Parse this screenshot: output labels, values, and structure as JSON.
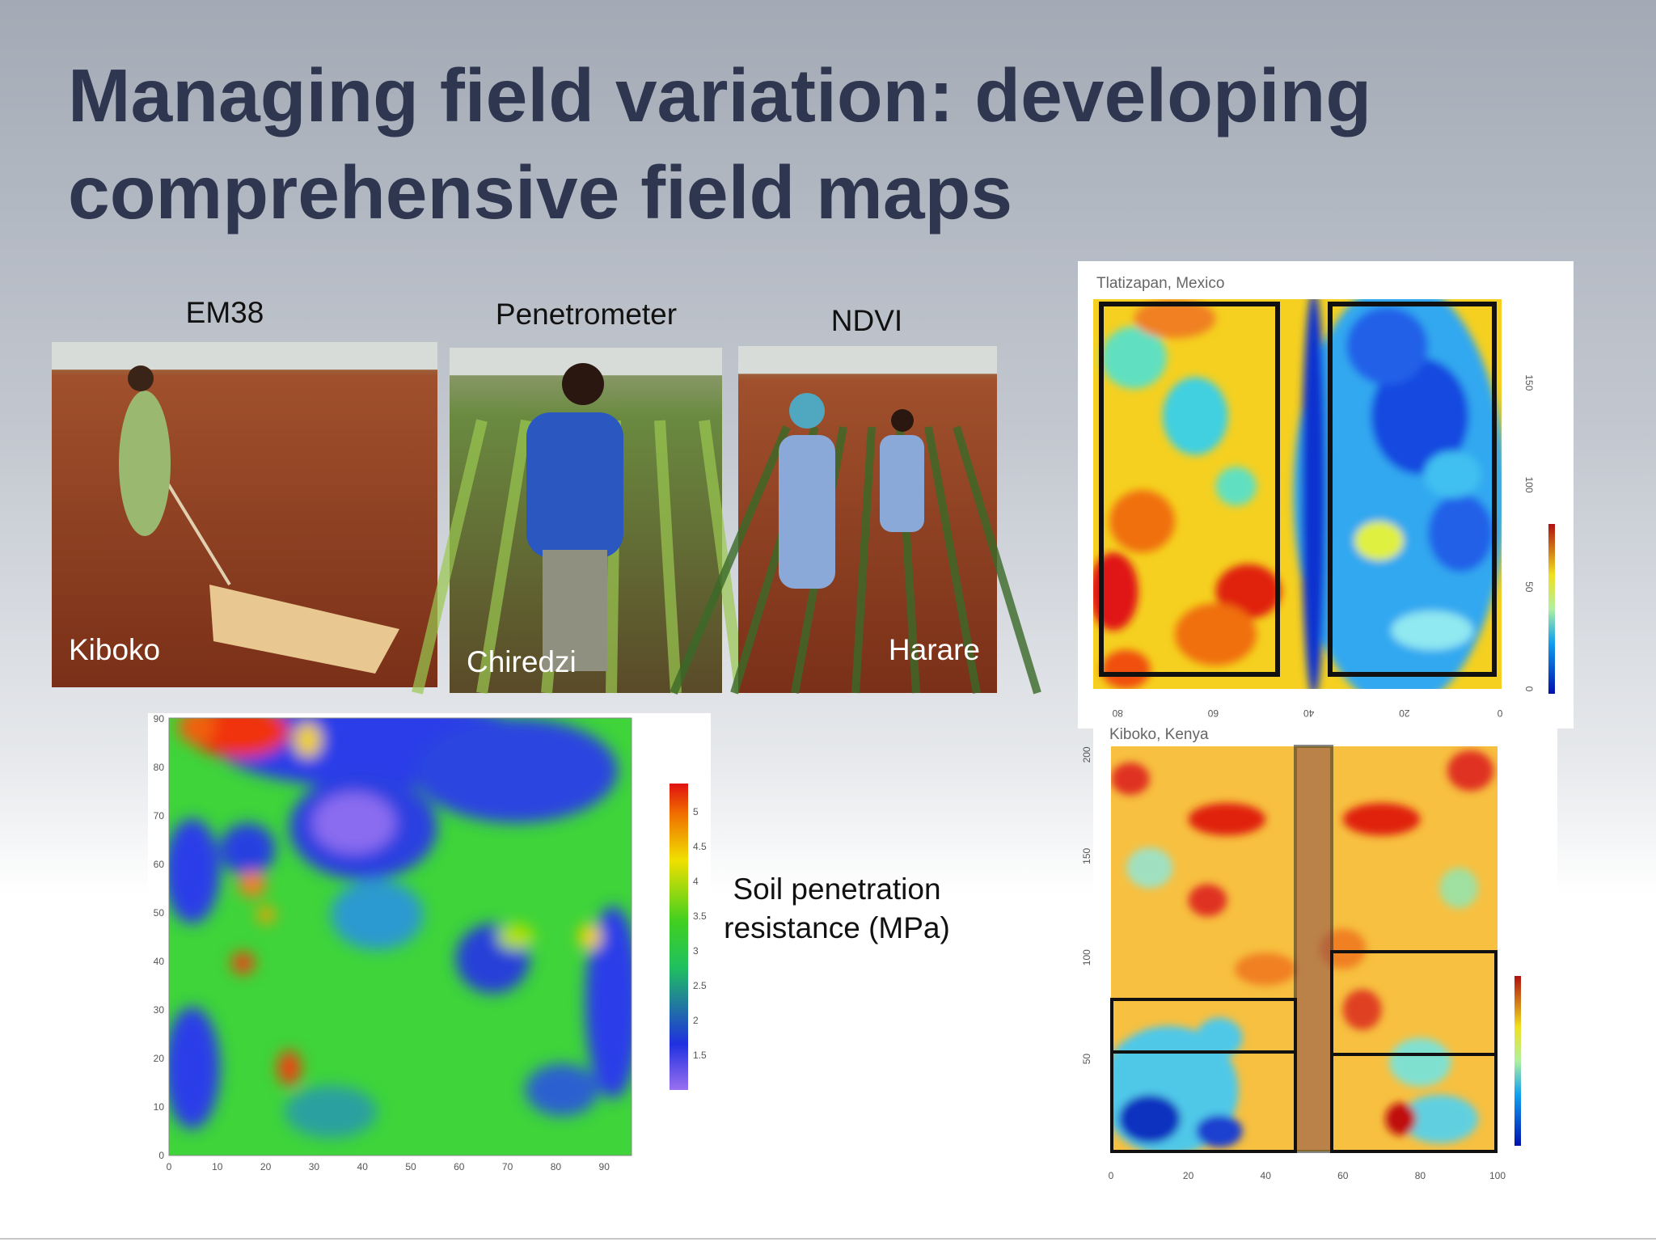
{
  "title": "Managing field variation: developing comprehensive field maps",
  "photos": [
    {
      "label": "EM38",
      "location": "Kiboko"
    },
    {
      "label": "Penetrometer",
      "location": "Chiredzi"
    },
    {
      "label": "NDVI",
      "location": "Harare"
    }
  ],
  "soil_map": {
    "caption": "Soil penetration resistance (MPa)",
    "xticks": [
      0,
      10,
      20,
      30,
      40,
      50,
      60,
      70,
      80,
      90
    ],
    "yticks": [
      0,
      10,
      20,
      30,
      40,
      50,
      60,
      70,
      80,
      90
    ],
    "colorbar_ticks": [
      1.5,
      2,
      2.5,
      3,
      3.5,
      4,
      4.5,
      5
    ]
  },
  "field_maps": [
    {
      "title": "Tlatizapan, Mexico",
      "xticks": [
        80,
        60,
        40,
        20,
        0
      ],
      "yticks": [
        0,
        50,
        100,
        150
      ]
    },
    {
      "title": "Kiboko, Kenya",
      "xticks": [
        0,
        20,
        40,
        60,
        80,
        100
      ],
      "yticks": [
        50,
        100,
        150,
        200
      ]
    }
  ]
}
